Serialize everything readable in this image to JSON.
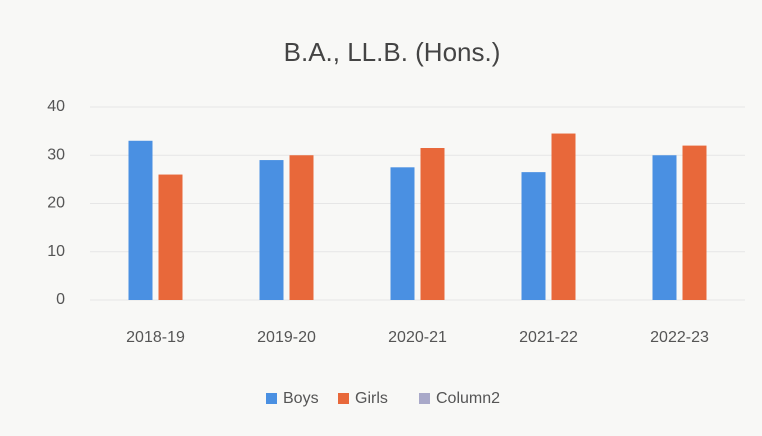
{
  "chart_data": {
    "type": "bar",
    "title": "B.A., LL.B. (Hons.)",
    "categories": [
      "2018-19",
      "2019-20",
      "2020-21",
      "2021-22",
      "2022-23"
    ],
    "series": [
      {
        "name": "Boys",
        "color": "#4a90e2",
        "values": [
          33,
          29,
          27.5,
          26.5,
          30
        ]
      },
      {
        "name": "Girls",
        "color": "#e8683a",
        "values": [
          26,
          30,
          31.5,
          34.5,
          32
        ]
      },
      {
        "name": "Column2",
        "color": "#a9a9c9",
        "values": [
          null,
          null,
          null,
          null,
          null
        ]
      }
    ],
    "ylim": [
      0,
      40
    ],
    "yticks": [
      0,
      10,
      20,
      30,
      40
    ],
    "grid": true,
    "legend": "bottom"
  }
}
